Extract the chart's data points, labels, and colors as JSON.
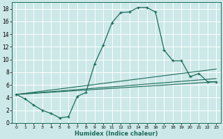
{
  "xlabel": "Humidex (Indice chaleur)",
  "bg_color": "#cce8e8",
  "line_color": "#1a6b5a",
  "grid_color": "#ffffff",
  "xlim": [
    -0.5,
    23.5
  ],
  "ylim": [
    0,
    19
  ],
  "xticks": [
    0,
    1,
    2,
    3,
    4,
    5,
    6,
    7,
    8,
    9,
    10,
    11,
    12,
    13,
    14,
    15,
    16,
    17,
    18,
    19,
    20,
    21,
    22,
    23
  ],
  "yticks": [
    0,
    2,
    4,
    6,
    8,
    10,
    12,
    14,
    16,
    18
  ],
  "main_line_x": [
    0,
    1,
    2,
    3,
    4,
    5,
    6,
    7,
    8,
    9,
    10,
    11,
    12,
    13,
    14,
    15,
    16,
    17,
    18,
    19,
    20,
    21,
    22,
    23
  ],
  "main_line_y": [
    4.5,
    3.8,
    2.8,
    2.0,
    1.5,
    0.8,
    1.0,
    4.2,
    4.8,
    9.3,
    12.3,
    15.8,
    17.4,
    17.5,
    18.2,
    18.2,
    17.5,
    11.5,
    9.8,
    9.8,
    7.3,
    7.8,
    6.5,
    6.5
  ],
  "line2_x": [
    0,
    23
  ],
  "line2_y": [
    4.5,
    6.5
  ],
  "line3_x": [
    0,
    23
  ],
  "line3_y": [
    4.5,
    7.0
  ],
  "line4_x": [
    0,
    23
  ],
  "line4_y": [
    4.5,
    8.5
  ]
}
